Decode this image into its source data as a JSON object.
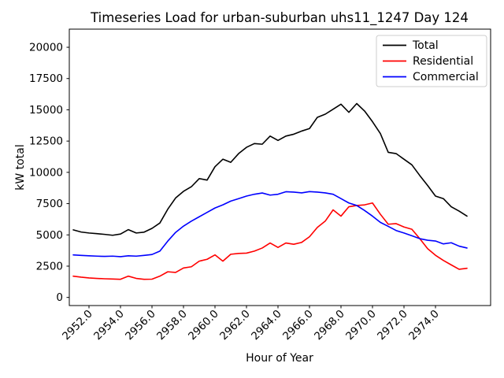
{
  "figure": {
    "title": "Timeseries Load for urban-suburban uhs11_1247  Day 124"
  },
  "axes": {
    "x": {
      "label": "Hour of Year",
      "tick_values": [
        2952,
        2954,
        2956,
        2958,
        2960,
        2962,
        2964,
        2966,
        2968,
        2970,
        2972,
        2974
      ],
      "tick_labels": [
        "2952.0",
        "2954.0",
        "2956.0",
        "2958.0",
        "2960.0",
        "2962.0",
        "2964.0",
        "2966.0",
        "2968.0",
        "2970.0",
        "2972.0",
        "2974.0"
      ]
    },
    "y": {
      "label": "kW total",
      "tick_values": [
        0,
        2500,
        5000,
        7500,
        10000,
        12500,
        15000,
        17500,
        20000
      ],
      "tick_labels": [
        "0",
        "2500",
        "5000",
        "7500",
        "10000",
        "12500",
        "15000",
        "17500",
        "20000"
      ]
    }
  },
  "legend": {
    "items": [
      {
        "label": "Total",
        "color": "#000000"
      },
      {
        "label": "Residential",
        "color": "#ff0000"
      },
      {
        "label": "Commercial",
        "color": "#0000ff"
      }
    ]
  },
  "chart_data": {
    "type": "line",
    "title": "Timeseries Load for urban-suburban uhs11_1247  Day 124",
    "xlabel": "Hour of Year",
    "ylabel": "kW total",
    "xlim": [
      2950.75,
      2977.5
    ],
    "ylim": [
      -650,
      21450
    ],
    "grid": false,
    "legend_position": "upper right",
    "x": [
      2951,
      2951.5,
      2952,
      2952.5,
      2953,
      2953.5,
      2954,
      2954.5,
      2955,
      2955.5,
      2956,
      2956.5,
      2957,
      2957.5,
      2958,
      2958.5,
      2959,
      2959.5,
      2960,
      2960.5,
      2961,
      2961.5,
      2962,
      2962.5,
      2963,
      2963.5,
      2964,
      2964.5,
      2965,
      2965.5,
      2966,
      2966.5,
      2967,
      2967.5,
      2968,
      2968.5,
      2969,
      2969.5,
      2970,
      2970.5,
      2971,
      2971.5,
      2972,
      2972.5,
      2973,
      2973.5,
      2974,
      2974.5,
      2975,
      2975.5,
      2976
    ],
    "series": [
      {
        "name": "Total",
        "color": "#000000",
        "values": [
          5400,
          5230,
          5150,
          5100,
          5040,
          4970,
          5070,
          5420,
          5150,
          5220,
          5520,
          5950,
          7050,
          7950,
          8480,
          8850,
          9500,
          9380,
          10450,
          11050,
          10800,
          11500,
          12000,
          12300,
          12250,
          12900,
          12550,
          12900,
          13050,
          13300,
          13500,
          14400,
          14650,
          15050,
          15450,
          14800,
          15500,
          14900,
          14050,
          13100,
          11600,
          11500,
          11050,
          10600,
          9750,
          8950,
          8100,
          7900,
          7250,
          6900,
          6500
        ]
      },
      {
        "name": "Residential",
        "color": "#ff0000",
        "values": [
          1700,
          1620,
          1560,
          1520,
          1490,
          1470,
          1450,
          1700,
          1520,
          1450,
          1460,
          1700,
          2050,
          2000,
          2350,
          2450,
          2900,
          3050,
          3400,
          2900,
          3450,
          3520,
          3540,
          3700,
          3950,
          4350,
          4000,
          4350,
          4250,
          4400,
          4850,
          5600,
          6100,
          7000,
          6500,
          7250,
          7350,
          7400,
          7550,
          6650,
          5850,
          5900,
          5630,
          5450,
          4700,
          3900,
          3370,
          2960,
          2600,
          2250,
          2330
        ]
      },
      {
        "name": "Commercial",
        "color": "#0000ff",
        "values": [
          3400,
          3360,
          3330,
          3300,
          3280,
          3300,
          3260,
          3330,
          3300,
          3360,
          3430,
          3700,
          4500,
          5200,
          5700,
          6100,
          6450,
          6800,
          7150,
          7400,
          7700,
          7900,
          8100,
          8250,
          8350,
          8180,
          8250,
          8450,
          8420,
          8360,
          8460,
          8420,
          8360,
          8250,
          7900,
          7550,
          7350,
          6950,
          6500,
          6000,
          5680,
          5350,
          5150,
          4930,
          4700,
          4570,
          4510,
          4280,
          4370,
          4100,
          3950
        ]
      }
    ]
  }
}
